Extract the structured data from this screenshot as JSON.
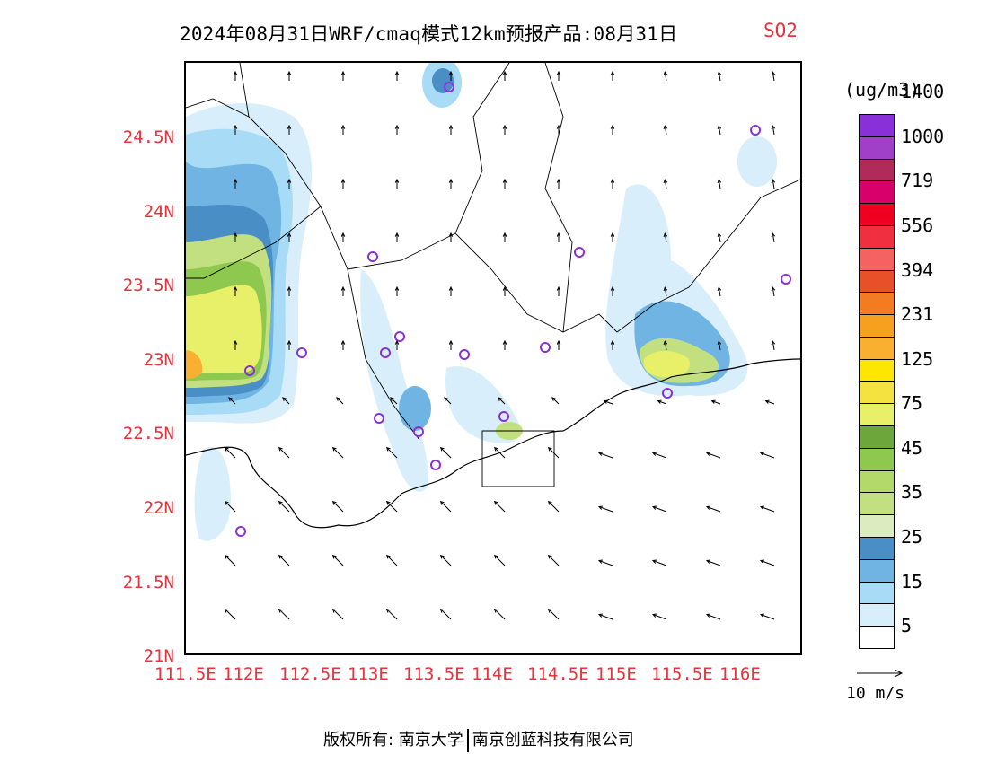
{
  "title": {
    "main": "2024年08月31日WRF/cmaq模式12km预报产品:08月31日",
    "species": "SO2"
  },
  "map": {
    "lat_ticks": [
      "24.5N",
      "24N",
      "23.5N",
      "23N",
      "22.5N",
      "22N",
      "21.5N",
      "21N"
    ],
    "lon_ticks": [
      "111.5E",
      "112E",
      "112.5E",
      "113E",
      "113.5E",
      "114E",
      "114.5E",
      "115E",
      "115.5E",
      "116E"
    ],
    "extent": {
      "lon": [
        111.5,
        116.7
      ],
      "lat": [
        21.0,
        25.0
      ]
    }
  },
  "colorbar": {
    "unit": "(ug/m3)",
    "labels": [
      "5",
      "15",
      "25",
      "35",
      "45",
      "75",
      "125",
      "231",
      "394",
      "556",
      "719",
      "1000",
      "1400"
    ],
    "colors": [
      "#ffffff",
      "#d8eefa",
      "#a8dcf6",
      "#6fb4e3",
      "#4a8ec6",
      "#dcebc0",
      "#c3e080",
      "#b2d96a",
      "#8fc84e",
      "#6da63a",
      "#e8f06a",
      "#f4e240",
      "#ffe600",
      "#f9b030",
      "#f7a020",
      "#f47c20",
      "#e8502a",
      "#f46262",
      "#f03040",
      "#f00020",
      "#d8006a",
      "#b02a5a",
      "#a040c8",
      "#8a30d8"
    ],
    "wind_reference": "10 m/s"
  },
  "footer": {
    "copyright": "版权所有: 南京大学",
    "company": "南京创蓝科技有限公司"
  }
}
